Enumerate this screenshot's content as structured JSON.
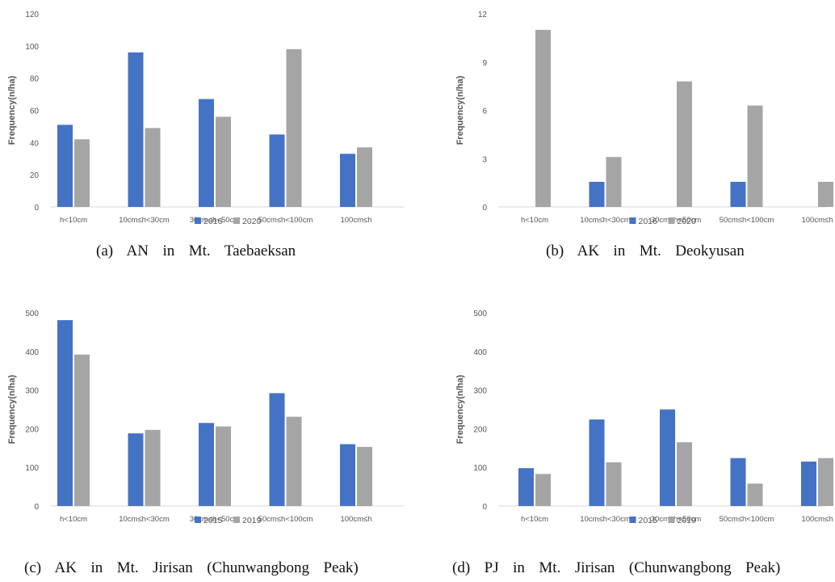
{
  "chart_data": [
    {
      "type": "bar",
      "ylabel": "Frequency(n/ha)",
      "categories": [
        "h<10cm",
        "10cm≤h<30cm",
        "30cm≤h<50cm",
        "50cm≤h<100cm",
        "100cm≤h"
      ],
      "ylim": [
        0,
        120
      ],
      "yticks": [
        0,
        20,
        40,
        60,
        80,
        100,
        120
      ],
      "series": [
        {
          "name": "2016",
          "color": "#4472C4",
          "values": [
            51,
            96,
            67,
            45,
            33
          ]
        },
        {
          "name": "2020",
          "color": "#A5A5A5",
          "values": [
            42,
            49,
            56,
            98,
            37
          ]
        }
      ],
      "legend": "bottom",
      "grid": false,
      "caption": "(a)  AN  in  Mt.  Taebaeksan"
    },
    {
      "type": "bar",
      "ylabel": "Frequency(n/ha)",
      "categories": [
        "h<10cm",
        "10cm≤h<30cm",
        "30cm≤h<50cm",
        "50cm≤h<100cm",
        "100cm≤h"
      ],
      "ylim": [
        0,
        12
      ],
      "yticks": [
        0,
        3,
        6,
        9,
        12
      ],
      "series": [
        {
          "name": "2016",
          "color": "#4472C4",
          "values": [
            0,
            1.56,
            0,
            1.56,
            0
          ]
        },
        {
          "name": "2020",
          "color": "#A5A5A5",
          "values": [
            11.0,
            3.1,
            7.8,
            6.3,
            1.56
          ]
        }
      ],
      "legend": "bottom",
      "grid": false,
      "caption": "(b)  AK  in  Mt.  Deokyusan"
    },
    {
      "type": "bar",
      "ylabel": "Frequency(n/ha)",
      "categories": [
        "h<10cm",
        "10cm≤h<30cm",
        "30cm≤h<50cm",
        "50cm≤h<100cm",
        "100cm≤h"
      ],
      "ylim": [
        0,
        500
      ],
      "yticks": [
        0,
        100,
        200,
        300,
        400,
        500
      ],
      "series": [
        {
          "name": "2015",
          "color": "#4472C4",
          "values": [
            481,
            188,
            215,
            292,
            160
          ]
        },
        {
          "name": "2019",
          "color": "#A5A5A5",
          "values": [
            392,
            197,
            206,
            231,
            153
          ]
        }
      ],
      "legend": "bottom",
      "grid": false,
      "caption": "(c)  AK  in  Mt.  Jirisan  (Chunwangbong  Peak)"
    },
    {
      "type": "bar",
      "ylabel": "Frequency(n/ha)",
      "categories": [
        "h<10cm",
        "10cm≤h<30cm",
        "30cm≤h<50cm",
        "50cm≤h<100cm",
        "100cm≤h"
      ],
      "ylim": [
        0,
        500
      ],
      "yticks": [
        0,
        100,
        200,
        300,
        400,
        500
      ],
      "series": [
        {
          "name": "2015",
          "color": "#4472C4",
          "values": [
            98,
            224,
            250,
            124,
            115
          ]
        },
        {
          "name": "2019",
          "color": "#A5A5A5",
          "values": [
            83,
            113,
            165,
            58,
            124
          ]
        }
      ],
      "legend": "bottom",
      "grid": false,
      "caption": "(d)  PJ  in  Mt.  Jirisan  (Chunwangbong  Peak)"
    }
  ]
}
